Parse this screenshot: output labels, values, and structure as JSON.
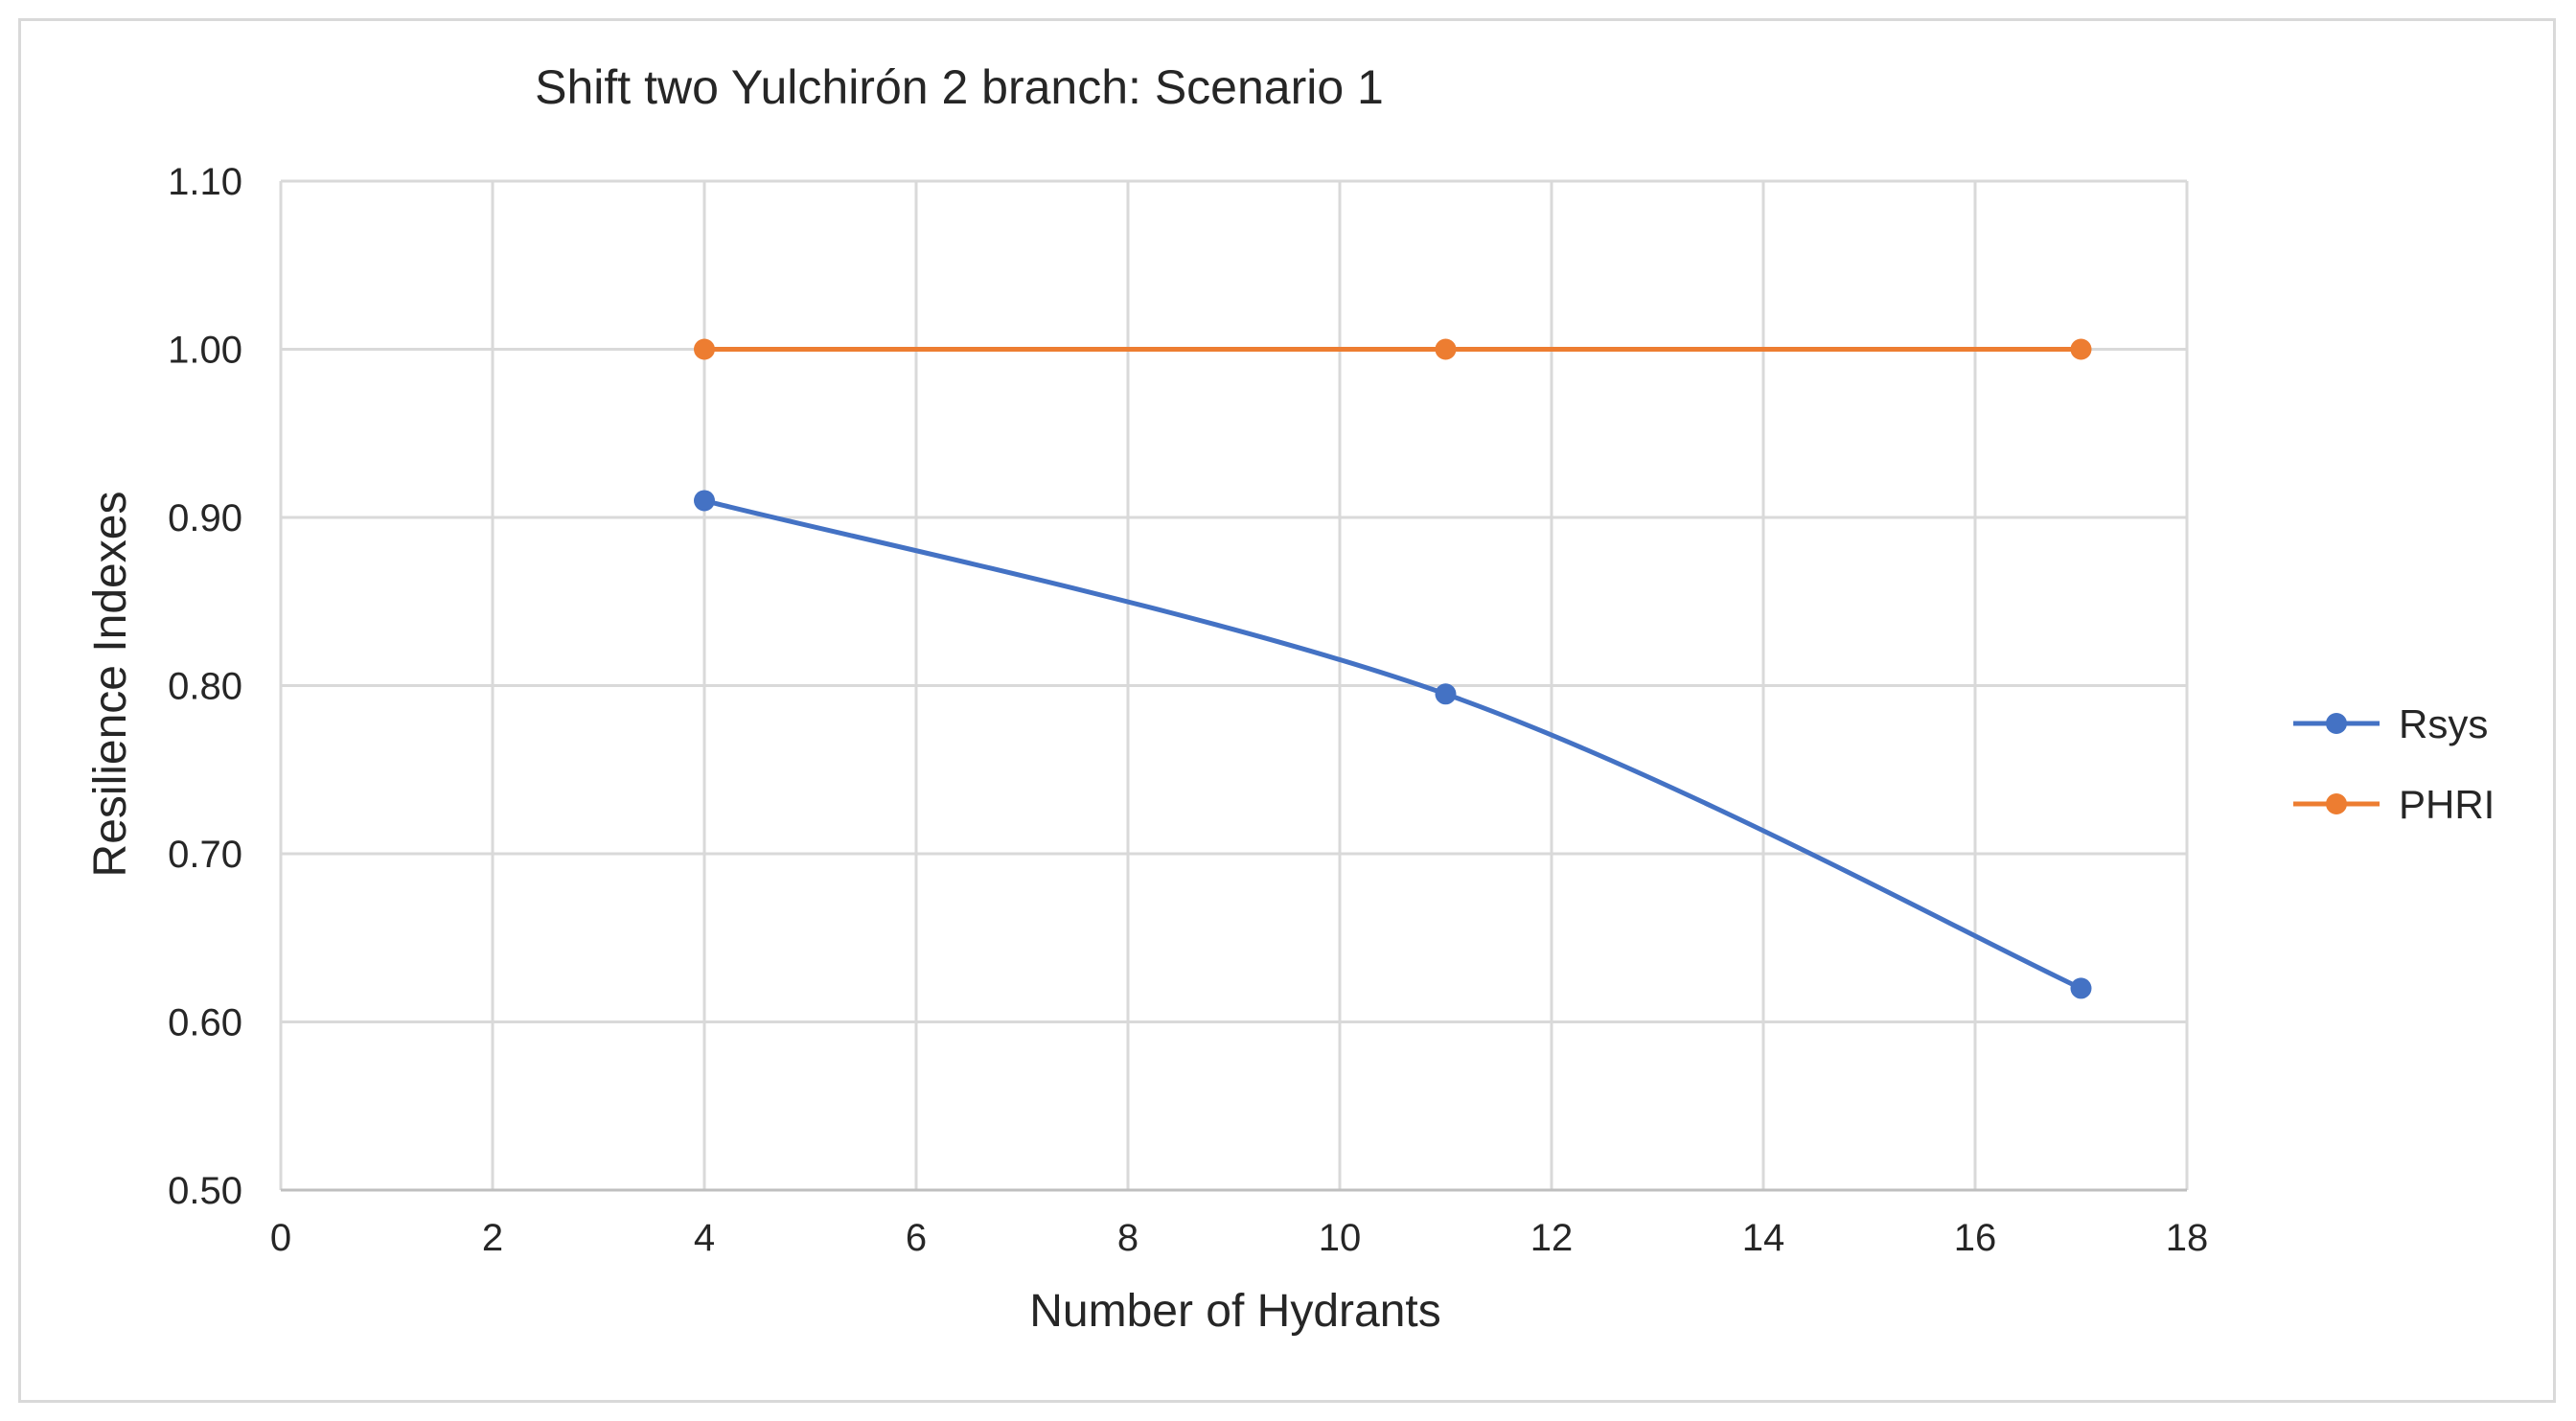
{
  "chart_data": {
    "type": "line",
    "title": "Shift two Yulchirón 2 branch: Scenario 1",
    "xlabel": "Number of Hydrants",
    "ylabel": "Resilience Indexes",
    "xlim": [
      0,
      18
    ],
    "ylim": [
      0.5,
      1.1
    ],
    "x_ticks": [
      "0",
      "2",
      "4",
      "6",
      "8",
      "10",
      "12",
      "14",
      "16",
      "18"
    ],
    "y_ticks": [
      "0.50",
      "0.60",
      "0.70",
      "0.80",
      "0.90",
      "1.00",
      "1.10"
    ],
    "grid": true,
    "smoothed": true,
    "legend_position": "right",
    "series": [
      {
        "name": "Rsys",
        "color": "#4472c4",
        "x": [
          4,
          11,
          17
        ],
        "y": [
          0.91,
          0.795,
          0.62
        ]
      },
      {
        "name": "PHRI",
        "color": "#ed7d31",
        "x": [
          4,
          11,
          17
        ],
        "y": [
          1.0,
          1.0,
          1.0
        ]
      }
    ]
  }
}
